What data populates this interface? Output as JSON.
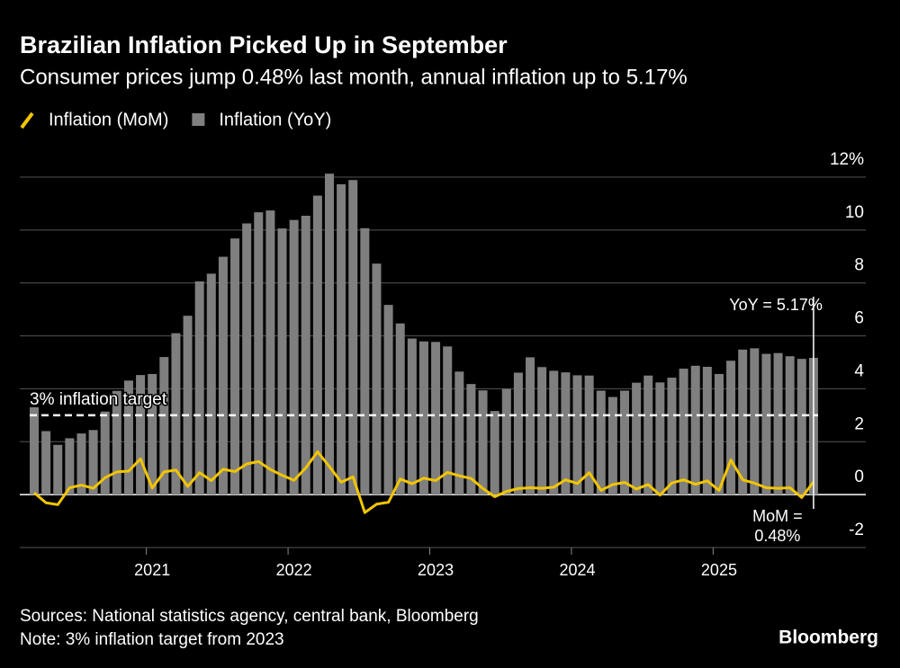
{
  "chart_data": {
    "type": "bar-line",
    "title": "Brazilian Inflation Picked Up in September",
    "subtitle": "Consumer prices jump 0.48% last month, annual inflation up to 5.17%",
    "categories": [
      null,
      null,
      null,
      null,
      null,
      null,
      null,
      null,
      null,
      null,
      "2021",
      null,
      null,
      null,
      null,
      null,
      null,
      null,
      null,
      null,
      null,
      null,
      "2022",
      null,
      null,
      null,
      null,
      null,
      null,
      null,
      null,
      null,
      null,
      null,
      "2023",
      null,
      null,
      null,
      null,
      null,
      null,
      null,
      null,
      null,
      null,
      null,
      "2024",
      null,
      null,
      null,
      null,
      null,
      null,
      null,
      null,
      null,
      null,
      null,
      "2025",
      null,
      null,
      null,
      null,
      null,
      null,
      null,
      null
    ],
    "series": [
      {
        "name": "Inflation (MoM)",
        "type": "line",
        "color": "#f2c500",
        "values": [
          0.07,
          -0.31,
          -0.38,
          0.26,
          0.36,
          0.24,
          0.64,
          0.86,
          0.89,
          1.35,
          0.25,
          0.86,
          0.93,
          0.31,
          0.83,
          0.53,
          0.96,
          0.87,
          1.16,
          1.25,
          0.95,
          0.73,
          0.54,
          1.01,
          1.62,
          1.06,
          0.47,
          0.67,
          -0.68,
          -0.36,
          -0.29,
          0.59,
          0.41,
          0.62,
          0.53,
          0.84,
          0.71,
          0.61,
          0.23,
          -0.08,
          0.12,
          0.23,
          0.26,
          0.24,
          0.28,
          0.56,
          0.42,
          0.83,
          0.16,
          0.38,
          0.46,
          0.21,
          0.38,
          -0.02,
          0.44,
          0.56,
          0.39,
          0.52,
          0.16,
          1.31,
          0.56,
          0.43,
          0.26,
          0.24,
          0.26,
          -0.11,
          0.48
        ]
      },
      {
        "name": "Inflation (YoY)",
        "type": "bar",
        "color": "#7f7f7f",
        "values": [
          3.3,
          2.4,
          1.88,
          2.13,
          2.31,
          2.44,
          3.14,
          3.92,
          4.31,
          4.52,
          4.56,
          5.2,
          6.1,
          6.76,
          8.06,
          8.35,
          8.99,
          9.68,
          10.25,
          10.67,
          10.74,
          10.06,
          10.38,
          10.54,
          11.3,
          12.13,
          11.73,
          11.89,
          10.07,
          8.73,
          7.17,
          6.47,
          5.9,
          5.79,
          5.77,
          5.6,
          4.65,
          4.18,
          3.94,
          3.16,
          3.99,
          4.61,
          5.19,
          4.82,
          4.68,
          4.62,
          4.51,
          4.5,
          3.93,
          3.69,
          3.93,
          4.23,
          4.5,
          4.24,
          4.42,
          4.76,
          4.87,
          4.83,
          4.56,
          5.06,
          5.48,
          5.53,
          5.32,
          5.35,
          5.23,
          5.13,
          5.17
        ]
      }
    ],
    "ylim": [
      -2,
      12
    ],
    "yticks": [
      -2,
      0,
      2,
      4,
      6,
      8,
      10,
      {
        "value": 12,
        "label": "12%"
      }
    ],
    "grid": true,
    "target": {
      "value": 3,
      "label": "3% inflation target"
    },
    "annotations": {
      "yoy": "YoY = 5.17%",
      "mom": [
        "MoM =",
        "0.48%"
      ]
    },
    "source": "Sources: National statistics agency, central bank, Bloomberg",
    "note": "Note: 3% inflation target from 2023",
    "brand": "Bloomberg"
  }
}
